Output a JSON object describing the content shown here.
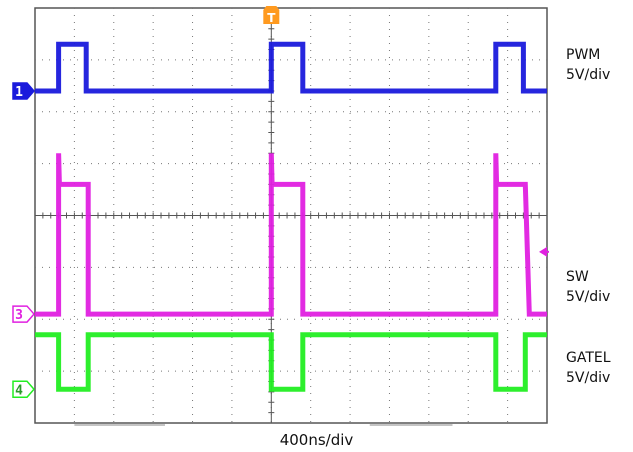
{
  "chart_data": {
    "type": "line",
    "title": "",
    "xlabel": "400ns/div",
    "ylabel": "",
    "grid": true,
    "divisions": {
      "x": 10,
      "y": 8
    },
    "xlim_div": [
      0,
      10
    ],
    "ylim_div": [
      0,
      8
    ],
    "trigger_marker": "T",
    "series": [
      {
        "name": "PWM",
        "scale_label": "5V/div",
        "channel": "1",
        "color": "#1a1adc",
        "baseline_div": 6.4,
        "high_div": 7.3,
        "step_points": [
          [
            0,
            6.4
          ],
          [
            0.6,
            6.4
          ],
          [
            0.6,
            7.3
          ],
          [
            1.3,
            7.3
          ],
          [
            1.3,
            6.4
          ],
          [
            6.0,
            6.4
          ],
          [
            6.0,
            7.3
          ],
          [
            6.8,
            7.3
          ],
          [
            6.8,
            6.4
          ],
          [
            11.7,
            6.4
          ],
          [
            11.7,
            7.3
          ],
          [
            12.4,
            7.3
          ],
          [
            12.4,
            6.4
          ],
          [
            13,
            6.4
          ]
        ]
      },
      {
        "name": "SW",
        "scale_label": "5V/div",
        "channel": "3",
        "color": "#e020e0",
        "baseline_div": 2.1,
        "high_div": 4.6,
        "spike_div": 5.2,
        "step_points": [
          [
            0,
            2.1
          ],
          [
            0.6,
            2.1
          ],
          [
            0.6,
            5.2
          ],
          [
            0.62,
            4.6
          ],
          [
            1.35,
            4.6
          ],
          [
            1.35,
            2.1
          ],
          [
            6.0,
            2.1
          ],
          [
            6.0,
            5.2
          ],
          [
            6.02,
            4.6
          ],
          [
            6.8,
            4.6
          ],
          [
            6.8,
            2.1
          ],
          [
            11.7,
            2.1
          ],
          [
            11.7,
            5.2
          ],
          [
            11.72,
            4.6
          ],
          [
            12.45,
            4.6
          ],
          [
            12.55,
            2.1
          ],
          [
            13,
            2.1
          ]
        ]
      },
      {
        "name": "GATEL",
        "scale_label": "5V/div",
        "channel": "4",
        "color": "#22ee22",
        "baseline_div": 0.65,
        "high_div": 1.7,
        "step_points": [
          [
            0,
            1.7
          ],
          [
            0.6,
            1.7
          ],
          [
            0.6,
            0.65
          ],
          [
            1.35,
            0.65
          ],
          [
            1.35,
            1.7
          ],
          [
            6.0,
            1.7
          ],
          [
            6.0,
            0.65
          ],
          [
            6.8,
            0.65
          ],
          [
            6.8,
            1.7
          ],
          [
            11.7,
            1.7
          ],
          [
            11.7,
            0.65
          ],
          [
            12.45,
            0.65
          ],
          [
            12.45,
            1.7
          ],
          [
            13,
            1.7
          ]
        ]
      }
    ]
  },
  "labels": {
    "pwm_name": "PWM",
    "pwm_scale": "5V/div",
    "sw_name": "SW",
    "sw_scale": "5V/div",
    "gatel_name": "GATEL",
    "gatel_scale": "5V/div",
    "timebase": "400ns/div"
  }
}
